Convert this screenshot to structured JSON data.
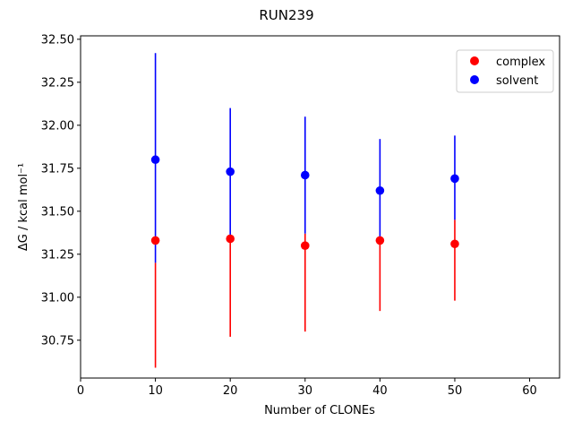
{
  "chart_data": {
    "type": "scatter",
    "title": "RUN239",
    "xlabel": "Number of CLONEs",
    "ylabel": "ΔG / kcal mol⁻¹",
    "xlim": [
      0,
      64
    ],
    "ylim": [
      30.53,
      32.52
    ],
    "xticks": [
      0,
      10,
      20,
      30,
      40,
      50,
      60
    ],
    "xtick_labels": [
      "0",
      "10",
      "20",
      "30",
      "40",
      "50",
      "60"
    ],
    "yticks": [
      30.75,
      31.0,
      31.25,
      31.5,
      31.75,
      32.0,
      32.25,
      32.5
    ],
    "ytick_labels": [
      "30.75",
      "31.00",
      "31.25",
      "31.50",
      "31.75",
      "32.00",
      "32.25",
      "32.50"
    ],
    "grid": false,
    "legend_position": "top-right",
    "series": [
      {
        "name": "complex",
        "color": "#ff0000",
        "x": [
          10,
          20,
          30,
          40,
          50
        ],
        "y": [
          31.33,
          31.34,
          31.3,
          31.33,
          31.31
        ],
        "err_low": [
          30.59,
          30.77,
          30.8,
          30.92,
          30.98
        ],
        "err_high": [
          31.2,
          31.34,
          31.37,
          31.33,
          31.45
        ]
      },
      {
        "name": "solvent",
        "color": "#0000ff",
        "x": [
          10,
          20,
          30,
          40,
          50
        ],
        "y": [
          31.8,
          31.73,
          31.71,
          31.62,
          31.69
        ],
        "err_low": [
          31.2,
          31.34,
          31.37,
          31.33,
          31.45
        ],
        "err_high": [
          32.42,
          32.1,
          32.05,
          31.92,
          31.94
        ]
      }
    ]
  }
}
